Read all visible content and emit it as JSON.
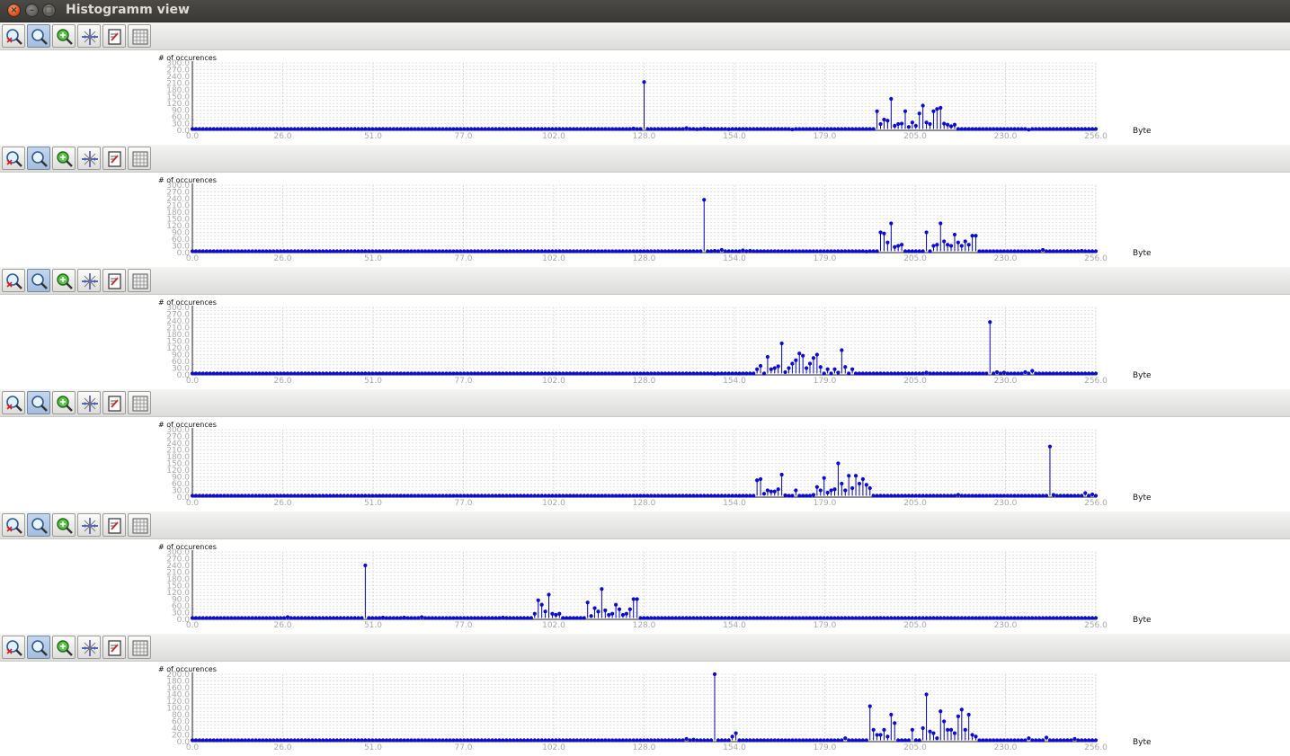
{
  "window": {
    "title": "Histogramm view"
  },
  "toolbar": {
    "buttons": [
      {
        "icon": "zoom-reset-icon",
        "active": false
      },
      {
        "icon": "zoom-icon",
        "active": true
      },
      {
        "icon": "pan-icon",
        "active": false
      },
      {
        "icon": "crosshair-icon",
        "active": false
      },
      {
        "icon": "export-icon",
        "active": false
      },
      {
        "icon": "grid-icon",
        "active": false
      }
    ]
  },
  "colors": {
    "series": "#0b0bd6",
    "stem": "#0000b8",
    "grid": "#c8c8c8",
    "tick_label": "#a8a8a8"
  },
  "chart_data": [
    {
      "type": "scatter",
      "title": "",
      "ylabel": "# of occurences",
      "xlabel": "Byte",
      "xlim": [
        0,
        256
      ],
      "ylim": [
        0,
        300
      ],
      "xticks": [
        "0.0",
        "26.0",
        "51.0",
        "77.0",
        "102.0",
        "128.0",
        "154.0",
        "179.0",
        "205.0",
        "230.0",
        "256.0"
      ],
      "yticks": [
        "0.0",
        "30.0",
        "60.0",
        "90.0",
        "120.0",
        "150.0",
        "180.0",
        "210.0",
        "240.0",
        "270.0",
        "300.0"
      ],
      "grid": true,
      "points": [
        [
          128,
          215
        ],
        [
          194,
          85
        ],
        [
          195,
          28
        ],
        [
          196,
          48
        ],
        [
          197,
          43
        ],
        [
          198,
          140
        ],
        [
          199,
          20
        ],
        [
          200,
          28
        ],
        [
          201,
          30
        ],
        [
          202,
          85
        ],
        [
          203,
          15
        ],
        [
          204,
          35
        ],
        [
          205,
          20
        ],
        [
          206,
          75
        ],
        [
          207,
          110
        ],
        [
          208,
          35
        ],
        [
          209,
          28
        ],
        [
          210,
          85
        ],
        [
          211,
          95
        ],
        [
          212,
          100
        ],
        [
          213,
          30
        ],
        [
          214,
          25
        ],
        [
          215,
          18
        ],
        [
          216,
          25
        ],
        [
          125,
          8
        ],
        [
          140,
          10
        ],
        [
          143,
          5
        ],
        [
          145,
          8
        ],
        [
          152,
          5
        ],
        [
          170,
          4
        ],
        [
          174,
          6
        ],
        [
          237,
          3
        ],
        [
          245,
          6
        ]
      ]
    },
    {
      "type": "scatter",
      "title": "",
      "ylabel": "# of occurences",
      "xlabel": "Byte",
      "xlim": [
        0,
        256
      ],
      "ylim": [
        0,
        300
      ],
      "xticks": [
        "0.0",
        "26.0",
        "51.0",
        "77.0",
        "102.0",
        "128.0",
        "154.0",
        "179.0",
        "205.0",
        "230.0",
        "256.0"
      ],
      "yticks": [
        "0.0",
        "30.0",
        "60.0",
        "90.0",
        "120.0",
        "150.0",
        "180.0",
        "210.0",
        "240.0",
        "270.0",
        "300.0"
      ],
      "grid": true,
      "points": [
        [
          145,
          235
        ],
        [
          195,
          90
        ],
        [
          196,
          85
        ],
        [
          197,
          45
        ],
        [
          198,
          130
        ],
        [
          199,
          25
        ],
        [
          200,
          30
        ],
        [
          201,
          35
        ],
        [
          208,
          90
        ],
        [
          210,
          30
        ],
        [
          211,
          35
        ],
        [
          212,
          130
        ],
        [
          213,
          50
        ],
        [
          214,
          35
        ],
        [
          215,
          30
        ],
        [
          216,
          80
        ],
        [
          217,
          45
        ],
        [
          218,
          30
        ],
        [
          219,
          50
        ],
        [
          220,
          35
        ],
        [
          221,
          75
        ],
        [
          222,
          75
        ],
        [
          148,
          8
        ],
        [
          150,
          12
        ],
        [
          156,
          10
        ],
        [
          158,
          8
        ],
        [
          191,
          5
        ],
        [
          241,
          12
        ],
        [
          252,
          8
        ]
      ]
    },
    {
      "type": "scatter",
      "title": "",
      "ylabel": "# of occurences",
      "xlabel": "Byte",
      "xlim": [
        0,
        256
      ],
      "ylim": [
        0,
        300
      ],
      "xticks": [
        "0.0",
        "26.0",
        "51.0",
        "77.0",
        "102.0",
        "128.0",
        "154.0",
        "179.0",
        "205.0",
        "230.0",
        "256.0"
      ],
      "yticks": [
        "0.0",
        "30.0",
        "60.0",
        "90.0",
        "120.0",
        "150.0",
        "180.0",
        "210.0",
        "240.0",
        "270.0",
        "300.0"
      ],
      "grid": true,
      "points": [
        [
          160,
          25
        ],
        [
          161,
          40
        ],
        [
          163,
          80
        ],
        [
          164,
          25
        ],
        [
          165,
          30
        ],
        [
          166,
          38
        ],
        [
          167,
          140
        ],
        [
          168,
          12
        ],
        [
          169,
          30
        ],
        [
          170,
          50
        ],
        [
          171,
          65
        ],
        [
          172,
          95
        ],
        [
          173,
          85
        ],
        [
          174,
          30
        ],
        [
          175,
          50
        ],
        [
          176,
          75
        ],
        [
          177,
          90
        ],
        [
          178,
          35
        ],
        [
          180,
          25
        ],
        [
          182,
          25
        ],
        [
          183,
          10
        ],
        [
          184,
          110
        ],
        [
          185,
          35
        ],
        [
          187,
          25
        ],
        [
          226,
          235
        ],
        [
          228,
          12
        ],
        [
          230,
          10
        ],
        [
          236,
          12
        ],
        [
          238,
          18
        ],
        [
          208,
          10
        ],
        [
          138,
          6
        ],
        [
          148,
          5
        ]
      ]
    },
    {
      "type": "scatter",
      "title": "",
      "ylabel": "# of occurences",
      "xlabel": "Byte",
      "xlim": [
        0,
        256
      ],
      "ylim": [
        0,
        300
      ],
      "xticks": [
        "0.0",
        "26.0",
        "51.0",
        "77.0",
        "102.0",
        "128.0",
        "154.0",
        "179.0",
        "205.0",
        "230.0",
        "256.0"
      ],
      "yticks": [
        "0.0",
        "30.0",
        "60.0",
        "90.0",
        "120.0",
        "150.0",
        "180.0",
        "210.0",
        "240.0",
        "270.0",
        "300.0"
      ],
      "grid": true,
      "points": [
        [
          160,
          75
        ],
        [
          161,
          80
        ],
        [
          162,
          15
        ],
        [
          163,
          30
        ],
        [
          164,
          25
        ],
        [
          165,
          25
        ],
        [
          166,
          35
        ],
        [
          167,
          100
        ],
        [
          168,
          8
        ],
        [
          171,
          30
        ],
        [
          176,
          10
        ],
        [
          177,
          45
        ],
        [
          178,
          30
        ],
        [
          179,
          85
        ],
        [
          180,
          20
        ],
        [
          181,
          30
        ],
        [
          182,
          35
        ],
        [
          183,
          150
        ],
        [
          184,
          60
        ],
        [
          185,
          30
        ],
        [
          186,
          95
        ],
        [
          187,
          40
        ],
        [
          188,
          95
        ],
        [
          189,
          60
        ],
        [
          190,
          80
        ],
        [
          191,
          55
        ],
        [
          192,
          40
        ],
        [
          243,
          225
        ],
        [
          244,
          10
        ],
        [
          253,
          18
        ],
        [
          255,
          12
        ],
        [
          217,
          10
        ],
        [
          128,
          6
        ]
      ]
    },
    {
      "type": "scatter",
      "title": "",
      "ylabel": "# of occurences",
      "xlabel": "Byte",
      "xlim": [
        0,
        256
      ],
      "ylim": [
        0,
        300
      ],
      "xticks": [
        "0.0",
        "26.0",
        "51.0",
        "77.0",
        "102.0",
        "128.0",
        "154.0",
        "179.0",
        "205.0",
        "230.0",
        "256.0"
      ],
      "yticks": [
        "0.0",
        "30.0",
        "60.0",
        "90.0",
        "120.0",
        "150.0",
        "180.0",
        "210.0",
        "240.0",
        "270.0",
        "300.0"
      ],
      "grid": true,
      "points": [
        [
          49,
          240
        ],
        [
          97,
          25
        ],
        [
          98,
          85
        ],
        [
          99,
          65
        ],
        [
          100,
          35
        ],
        [
          101,
          110
        ],
        [
          102,
          25
        ],
        [
          103,
          20
        ],
        [
          104,
          25
        ],
        [
          112,
          75
        ],
        [
          113,
          15
        ],
        [
          114,
          50
        ],
        [
          115,
          35
        ],
        [
          116,
          135
        ],
        [
          117,
          40
        ],
        [
          118,
          20
        ],
        [
          119,
          25
        ],
        [
          120,
          65
        ],
        [
          121,
          45
        ],
        [
          122,
          20
        ],
        [
          123,
          25
        ],
        [
          124,
          45
        ],
        [
          125,
          90
        ],
        [
          126,
          90
        ],
        [
          27,
          10
        ],
        [
          54,
          8
        ],
        [
          60,
          8
        ],
        [
          65,
          10
        ],
        [
          88,
          8
        ]
      ]
    },
    {
      "type": "scatter",
      "title": "",
      "ylabel": "# of occurences",
      "xlabel": "Byte",
      "xlim": [
        0,
        256
      ],
      "ylim": [
        0,
        200
      ],
      "xticks": [
        "0.0",
        "26.0",
        "51.0",
        "77.0",
        "102.0",
        "128.0",
        "154.0",
        "179.0",
        "205.0",
        "230.0",
        "256.0"
      ],
      "yticks": [
        "0.0",
        "20.0",
        "40.0",
        "60.0",
        "80.0",
        "100.0",
        "120.0",
        "140.0",
        "160.0",
        "180.0",
        "200.0"
      ],
      "grid": true,
      "points": [
        [
          148,
          200
        ],
        [
          153,
          15
        ],
        [
          154,
          25
        ],
        [
          192,
          105
        ],
        [
          193,
          35
        ],
        [
          194,
          20
        ],
        [
          195,
          20
        ],
        [
          196,
          35
        ],
        [
          197,
          15
        ],
        [
          198,
          80
        ],
        [
          199,
          55
        ],
        [
          204,
          35
        ],
        [
          207,
          40
        ],
        [
          208,
          140
        ],
        [
          209,
          30
        ],
        [
          210,
          25
        ],
        [
          211,
          10
        ],
        [
          212,
          90
        ],
        [
          213,
          60
        ],
        [
          214,
          35
        ],
        [
          215,
          35
        ],
        [
          216,
          25
        ],
        [
          217,
          75
        ],
        [
          218,
          95
        ],
        [
          219,
          35
        ],
        [
          220,
          80
        ],
        [
          221,
          20
        ],
        [
          222,
          15
        ],
        [
          140,
          8
        ],
        [
          142,
          6
        ],
        [
          185,
          10
        ],
        [
          237,
          10
        ],
        [
          242,
          12
        ],
        [
          250,
          8
        ]
      ]
    }
  ]
}
